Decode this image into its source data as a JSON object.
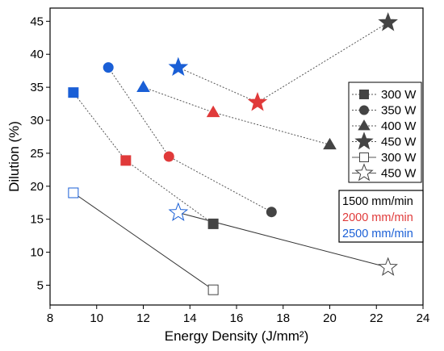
{
  "chart_data": {
    "type": "scatter",
    "title": "",
    "xlabel": "Energy Density (J/mm²)",
    "ylabel": "Dilution (%)",
    "xlim": [
      8,
      24
    ],
    "ylim": [
      2,
      47
    ],
    "xticks": [
      8,
      10,
      12,
      14,
      16,
      18,
      20,
      22,
      24
    ],
    "yticks": [
      5,
      10,
      15,
      20,
      25,
      30,
      35,
      40,
      45
    ],
    "grid": false,
    "legend_position": "right",
    "speed_colors": {
      "1500 mm/min": "#444444",
      "2000 mm/min": "#e03a3a",
      "2500 mm/min": "#1a5fd6"
    },
    "legend_power": [
      {
        "label": "300 W",
        "marker": "square",
        "filled": true
      },
      {
        "label": "350 W",
        "marker": "circle",
        "filled": true
      },
      {
        "label": "400 W",
        "marker": "triangle",
        "filled": true
      },
      {
        "label": "450 W",
        "marker": "star",
        "filled": true
      },
      {
        "label": "300 W",
        "marker": "square",
        "filled": false
      },
      {
        "label": "450 W",
        "marker": "star",
        "filled": false
      }
    ],
    "legend_speed": [
      {
        "label": "1500 mm/min",
        "color": "#000000"
      },
      {
        "label": "2000 mm/min",
        "color": "#e03a3a"
      },
      {
        "label": "2500 mm/min",
        "color": "#1a5fd6"
      }
    ],
    "series": [
      {
        "power": "300 W",
        "marker": "square",
        "filled": true,
        "line": "dotted",
        "points": [
          {
            "x": 9.0,
            "y": 34.2,
            "speed": "2500 mm/min"
          },
          {
            "x": 11.25,
            "y": 23.9,
            "speed": "2000 mm/min"
          },
          {
            "x": 15.0,
            "y": 14.3,
            "speed": "1500 mm/min"
          }
        ]
      },
      {
        "power": "350 W",
        "marker": "circle",
        "filled": true,
        "line": "dotted",
        "points": [
          {
            "x": 10.5,
            "y": 38.0,
            "speed": "2500 mm/min"
          },
          {
            "x": 13.1,
            "y": 24.5,
            "speed": "2000 mm/min"
          },
          {
            "x": 17.5,
            "y": 16.1,
            "speed": "1500 mm/min"
          }
        ]
      },
      {
        "power": "400 W",
        "marker": "triangle",
        "filled": true,
        "line": "dotted",
        "points": [
          {
            "x": 12.0,
            "y": 35.0,
            "speed": "2500 mm/min"
          },
          {
            "x": 15.0,
            "y": 31.2,
            "speed": "2000 mm/min"
          },
          {
            "x": 20.0,
            "y": 26.3,
            "speed": "1500 mm/min"
          }
        ]
      },
      {
        "power": "450 W",
        "marker": "star",
        "filled": true,
        "line": "dotted",
        "points": [
          {
            "x": 13.5,
            "y": 38.0,
            "speed": "2500 mm/min"
          },
          {
            "x": 16.9,
            "y": 32.7,
            "speed": "2000 mm/min"
          },
          {
            "x": 22.5,
            "y": 44.8,
            "speed": "1500 mm/min"
          }
        ]
      },
      {
        "power": "300 W",
        "marker": "square",
        "filled": false,
        "line": "solid",
        "points": [
          {
            "x": 9.0,
            "y": 19.0,
            "speed": "2500 mm/min"
          },
          {
            "x": 15.0,
            "y": 4.3,
            "speed": "1500 mm/min"
          }
        ]
      },
      {
        "power": "450 W",
        "marker": "star",
        "filled": false,
        "line": "solid",
        "points": [
          {
            "x": 13.5,
            "y": 16.0,
            "speed": "2500 mm/min"
          },
          {
            "x": 22.5,
            "y": 7.7,
            "speed": "1500 mm/min"
          }
        ]
      }
    ]
  }
}
